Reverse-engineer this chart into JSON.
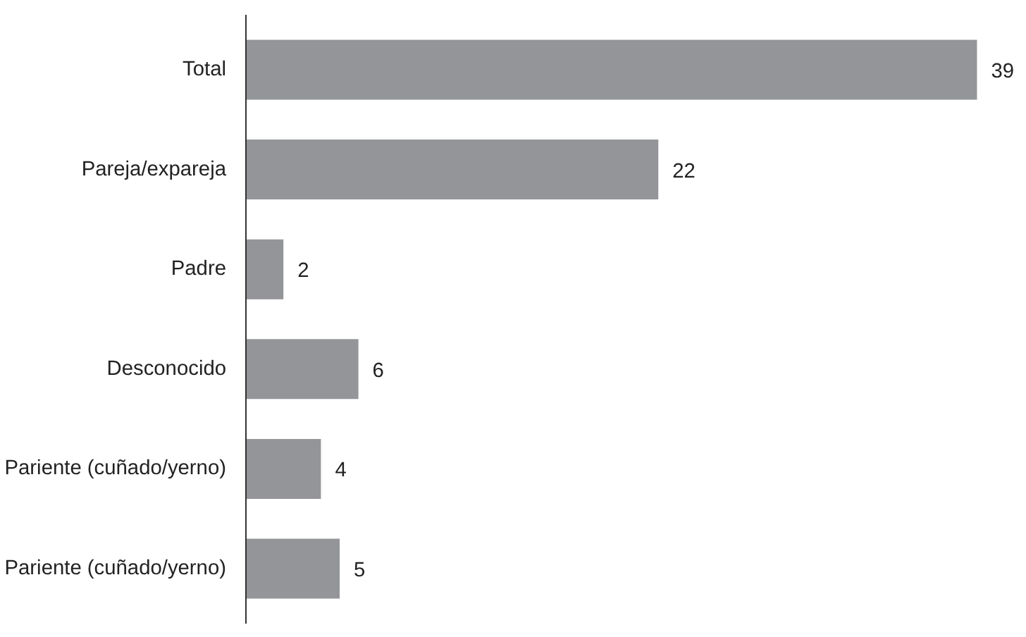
{
  "chart_data": {
    "type": "bar",
    "orientation": "horizontal",
    "categories": [
      "Total",
      "Pareja/expareja",
      "Padre",
      "Desconocido",
      "Pariente (cuñado/yerno)",
      "Pariente (cuñado/yerno)"
    ],
    "values": [
      39,
      22,
      2,
      6,
      4,
      5
    ],
    "color": "#939598",
    "data_labels": true,
    "grid": false,
    "tick_labels": "y"
  }
}
